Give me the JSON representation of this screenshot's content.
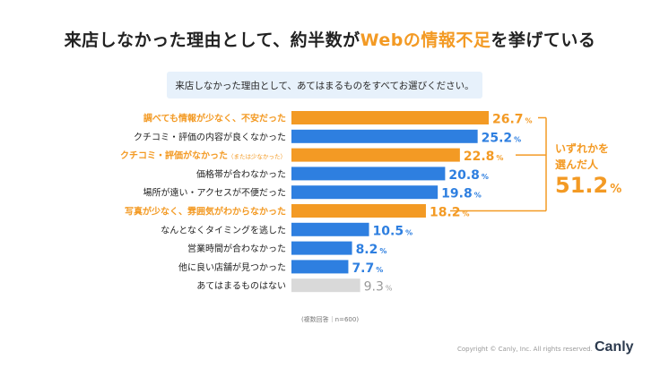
{
  "page": {
    "title_pre": "来店しなかった理由として、約半数が",
    "title_highlight": "Webの情報不足",
    "title_post": "を挙げている",
    "question": "来店しなかった理由として、あてはまるものをすべてお選びください。",
    "summary_label_1": "いずれかを",
    "summary_label_2": "選んだ人",
    "summary_value": "51.2",
    "summary_unit": "%",
    "note": "(複数回答｜n=600)",
    "copyright": "Copyright © Canly, Inc. All rights reserved.",
    "logo": "Canly"
  },
  "chart_data": {
    "type": "bar",
    "orientation": "horizontal",
    "title": "来店しなかった理由として、約半数がWebの情報不足を挙げている",
    "categories": [
      "調べても情報が少なく、不安だった",
      "クチコミ・評価の内容が良くなかった",
      "クチコミ・評価がなかった",
      "価格帯が合わなかった",
      "場所が遠い・アクセスが不便だった",
      "写真が少なく、雰囲気がわからなかった",
      "なんとなくタイミングを逃した",
      "営業時間が合わなかった",
      "他に良い店舗が見つかった",
      "あてはまるものはない"
    ],
    "category_suffix": [
      "",
      "",
      "（または少なかった）",
      "",
      "",
      "",
      "",
      "",
      "",
      ""
    ],
    "values": [
      26.7,
      25.2,
      22.8,
      20.8,
      19.8,
      18.2,
      10.5,
      8.2,
      7.7,
      9.3
    ],
    "value_labels": [
      "26.7",
      "25.2",
      "22.8",
      "20.8",
      "19.8",
      "18.2",
      "10.5",
      "8.2",
      "7.7",
      "9.3"
    ],
    "unit": "%",
    "highlighted": [
      true,
      false,
      true,
      false,
      false,
      true,
      false,
      false,
      false,
      false
    ],
    "muted": [
      false,
      false,
      false,
      false,
      false,
      false,
      false,
      false,
      false,
      true
    ],
    "bracket_group_total": 51.2,
    "xlim": [
      0,
      26.7
    ],
    "colors": {
      "highlight": "#f39a24",
      "normal": "#2e7fe0",
      "muted": "#d9d9d9",
      "muted_text": "#9a9a9a"
    }
  }
}
